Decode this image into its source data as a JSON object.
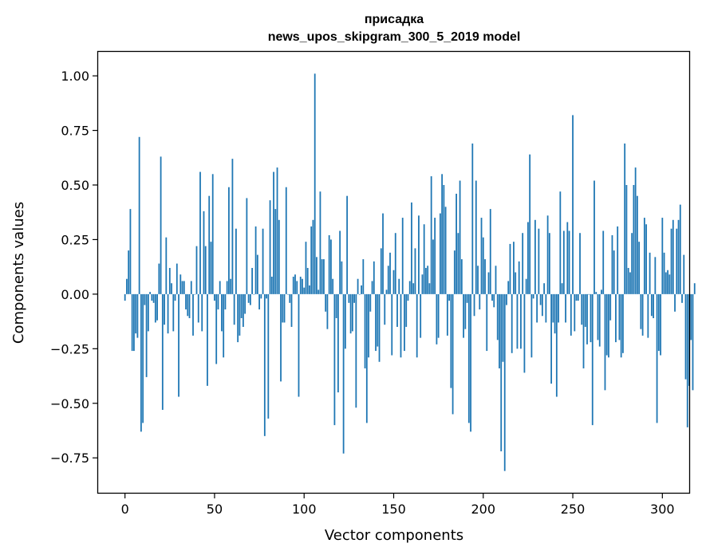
{
  "chart_data": {
    "type": "bar",
    "title_line1": "присадка",
    "title_line2": "news_upos_skipgram_300_5_2019 model",
    "xlabel": "Vector components",
    "ylabel": "Components values",
    "xlim": [
      -15,
      315
    ],
    "ylim": [
      -0.91,
      1.11
    ],
    "xticks": [
      0,
      50,
      100,
      150,
      200,
      250,
      300
    ],
    "xtick_labels": [
      "0",
      "50",
      "100",
      "150",
      "200",
      "250",
      "300"
    ],
    "yticks": [
      -0.75,
      -0.5,
      -0.25,
      0.0,
      0.25,
      0.5,
      0.75,
      1.0
    ],
    "ytick_labels": [
      "−0.75",
      "−0.50",
      "−0.25",
      "0.00",
      "0.25",
      "0.50",
      "0.75",
      "1.00"
    ],
    "bar_color": "#1f77b4",
    "grid": false,
    "values": [
      -0.03,
      0.07,
      0.2,
      0.39,
      -0.26,
      -0.26,
      -0.18,
      -0.2,
      0.72,
      -0.63,
      -0.59,
      -0.05,
      -0.38,
      -0.17,
      0.01,
      -0.03,
      -0.04,
      -0.13,
      -0.12,
      0.14,
      0.63,
      -0.53,
      -0.14,
      0.26,
      -0.18,
      0.12,
      0.05,
      -0.17,
      -0.03,
      0.14,
      -0.47,
      0.09,
      0.06,
      0.06,
      -0.07,
      -0.1,
      -0.11,
      0.06,
      -0.19,
      0.0,
      0.22,
      -0.13,
      0.56,
      -0.17,
      0.38,
      0.22,
      -0.42,
      0.45,
      0.24,
      0.55,
      -0.03,
      -0.32,
      -0.07,
      0.06,
      -0.17,
      -0.29,
      -0.07,
      0.06,
      0.49,
      0.07,
      0.62,
      -0.14,
      0.3,
      -0.22,
      -0.19,
      -0.11,
      -0.15,
      -0.09,
      0.44,
      -0.04,
      -0.05,
      0.12,
      0.0,
      0.31,
      0.18,
      -0.07,
      -0.02,
      0.3,
      -0.65,
      -0.02,
      -0.57,
      0.43,
      0.08,
      0.56,
      0.39,
      0.58,
      0.34,
      -0.4,
      -0.13,
      -0.13,
      0.49,
      0.0,
      -0.04,
      -0.15,
      0.08,
      0.09,
      0.06,
      -0.47,
      0.08,
      0.07,
      0.03,
      0.24,
      0.12,
      0.04,
      0.31,
      0.34,
      1.01,
      0.17,
      0.02,
      0.47,
      0.16,
      0.16,
      -0.08,
      -0.16,
      0.27,
      0.25,
      0.07,
      -0.6,
      -0.11,
      -0.45,
      0.29,
      0.15,
      -0.73,
      -0.25,
      0.45,
      -0.04,
      -0.18,
      -0.17,
      -0.04,
      -0.52,
      0.07,
      0.0,
      0.04,
      0.16,
      -0.34,
      -0.59,
      -0.29,
      -0.08,
      0.06,
      0.15,
      -0.26,
      -0.24,
      -0.31,
      0.21,
      0.37,
      -0.14,
      0.02,
      0.13,
      0.19,
      -0.28,
      0.11,
      0.28,
      -0.15,
      0.07,
      -0.29,
      0.35,
      -0.26,
      -0.15,
      -0.03,
      0.06,
      0.42,
      0.05,
      0.21,
      -0.29,
      0.36,
      -0.2,
      0.09,
      0.32,
      0.12,
      0.13,
      0.05,
      0.54,
      0.25,
      0.35,
      -0.23,
      -0.2,
      0.37,
      0.55,
      0.5,
      0.4,
      -0.19,
      -0.03,
      -0.43,
      -0.55,
      0.2,
      0.46,
      0.28,
      0.52,
      0.16,
      -0.2,
      -0.16,
      -0.04,
      -0.59,
      -0.63,
      0.69,
      -0.1,
      0.52,
      0.13,
      -0.07,
      0.35,
      0.26,
      0.16,
      -0.26,
      0.1,
      0.39,
      -0.03,
      -0.06,
      0.13,
      -0.21,
      -0.34,
      -0.72,
      -0.31,
      -0.81,
      -0.05,
      0.06,
      0.23,
      -0.27,
      0.24,
      0.1,
      -0.25,
      0.15,
      -0.25,
      0.28,
      -0.36,
      0.07,
      0.33,
      0.64,
      -0.29,
      -0.02,
      0.34,
      -0.13,
      0.3,
      -0.05,
      -0.1,
      0.05,
      -0.13,
      0.36,
      0.28,
      -0.41,
      -0.13,
      -0.18,
      -0.47,
      -0.13,
      0.47,
      0.05,
      0.29,
      -0.13,
      0.33,
      0.29,
      -0.19,
      0.82,
      -0.17,
      -0.03,
      -0.03,
      0.28,
      -0.14,
      -0.34,
      -0.15,
      -0.23,
      0.0,
      -0.22,
      -0.6,
      0.52,
      0.01,
      -0.21,
      -0.24,
      0.02,
      0.29,
      -0.44,
      -0.28,
      -0.29,
      -0.12,
      0.27,
      0.2,
      -0.22,
      0.31,
      -0.21,
      -0.29,
      -0.27,
      0.69,
      0.5,
      0.12,
      0.1,
      0.28,
      0.5,
      0.58,
      0.45,
      0.24,
      -0.16,
      -0.19,
      0.35,
      0.32,
      -0.2,
      0.19,
      -0.1,
      -0.11,
      0.17,
      -0.59,
      -0.26,
      -0.28,
      0.35,
      0.19,
      0.1,
      0.11,
      0.09,
      0.3,
      0.34,
      -0.08,
      0.3,
      0.34,
      0.41,
      -0.04,
      0.18,
      -0.39,
      -0.61,
      -0.42,
      -0.21,
      -0.44,
      0.05
    ]
  }
}
